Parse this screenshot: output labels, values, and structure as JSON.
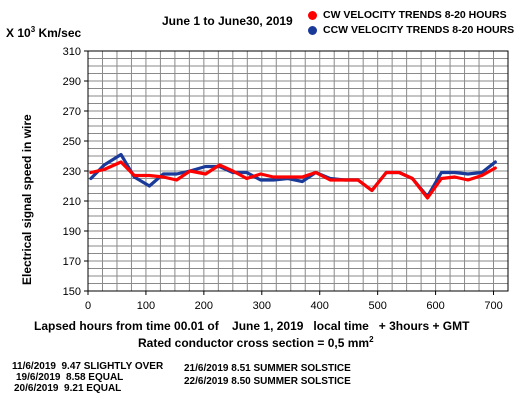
{
  "y_unit_label": {
    "prefix": "X 10",
    "exp": "3",
    "suffix": " Km/sec"
  },
  "chart_data": {
    "type": "line",
    "title": "June 1 to June30, 2019",
    "ylabel": "Electrical signal speed in wire",
    "xlabel_line1": "Lapsed hours from time 00.01 of    June 1, 2019   local time   + 3hours + GMT",
    "xlabel_line2": {
      "prefix": "Rated conductor cross section = 0,5 mm",
      "exp": "2"
    },
    "xlim": [
      0,
      725
    ],
    "ylim": [
      150,
      310
    ],
    "xticks": [
      0,
      100,
      200,
      300,
      400,
      500,
      600,
      700
    ],
    "yticks": [
      150,
      170,
      190,
      210,
      230,
      250,
      270,
      290,
      310
    ],
    "grid": true,
    "legend_position": "top-right",
    "series": [
      {
        "name": "CW VELOCITY TRENDS 8-20 HOURS",
        "color": "#ff0000",
        "x": [
          5,
          28,
          57,
          80,
          106,
          130,
          153,
          176,
          203,
          227,
          250,
          274,
          298,
          320,
          345,
          370,
          393,
          418,
          443,
          466,
          490,
          515,
          537,
          560,
          586,
          610,
          633,
          656,
          680,
          703
        ],
        "y": [
          229,
          231,
          236,
          227,
          227,
          226,
          224,
          230,
          228,
          234,
          230,
          225,
          228,
          226,
          226,
          226,
          229,
          224,
          224,
          224,
          217,
          229,
          229,
          225,
          212,
          225,
          226,
          224,
          227,
          232
        ]
      },
      {
        "name": "CCW VELOCITY TRENDS 8-20 HOURS",
        "color": "#1a3a99",
        "x": [
          5,
          28,
          57,
          80,
          106,
          130,
          153,
          176,
          203,
          227,
          250,
          274,
          298,
          320,
          345,
          370,
          393,
          418,
          443,
          466,
          490,
          515,
          537,
          560,
          586,
          610,
          633,
          656,
          680,
          703
        ],
        "y": [
          225,
          234,
          241,
          226,
          220,
          228,
          228,
          230,
          233,
          233,
          229,
          229,
          224,
          224,
          225,
          223,
          229,
          225,
          224,
          224,
          217,
          229,
          229,
          225,
          213,
          229,
          229,
          228,
          229,
          236
        ]
      }
    ]
  },
  "notes": [
    "11/6/2019  9.47 SLIGHTLY OVER",
    "19/6/2019  8.58 EQUAL",
    "20/6/2019  9.21 EQUAL",
    "21/6/2019 8.51 SUMMER SOLSTICE",
    "22/6/2019 8.50 SUMMER SOLSTICE"
  ]
}
